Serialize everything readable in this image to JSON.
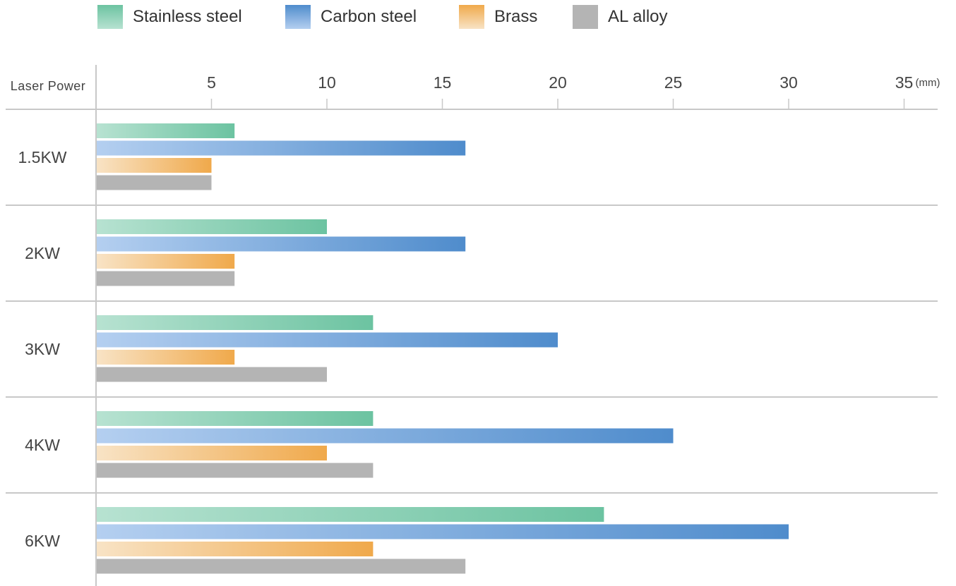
{
  "chart_data": {
    "type": "bar",
    "orientation": "horizontal",
    "title": "",
    "ylabel": "Laser Power",
    "xunit": "(mm)",
    "categories": [
      "1.5KW",
      "2KW",
      "3KW",
      "4KW",
      "6KW"
    ],
    "xticks": [
      "5",
      "10",
      "15",
      "20",
      "25",
      "30",
      "35"
    ],
    "xlim": [
      0,
      36
    ],
    "grid": false,
    "legend_position": "top",
    "series": [
      {
        "name": "Stainless steel",
        "values": [
          6,
          10,
          12,
          12,
          22
        ],
        "color_from": "#b7e2d1",
        "color_to": "#6cc3a1"
      },
      {
        "name": "Carbon steel",
        "values": [
          16,
          16,
          20,
          25,
          30
        ],
        "color_from": "#b4cff0",
        "color_to": "#4f8ccc"
      },
      {
        "name": "Brass",
        "values": [
          5,
          6,
          6,
          10,
          12
        ],
        "color_from": "#f8e3c5",
        "color_to": "#f0a94b"
      },
      {
        "name": "AL alloy",
        "values": [
          5,
          6,
          10,
          12,
          16
        ],
        "color_from": "#b4b4b4",
        "color_to": "#b4b4b4"
      }
    ]
  }
}
